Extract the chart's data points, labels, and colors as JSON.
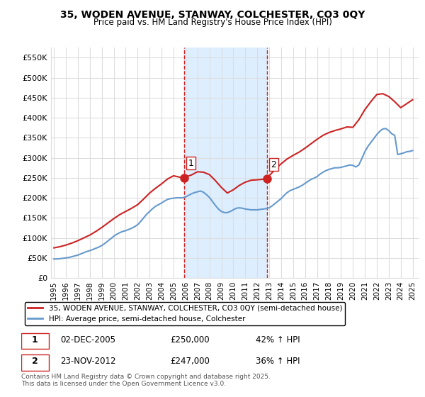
{
  "title": "35, WODEN AVENUE, STANWAY, COLCHESTER, CO3 0QY",
  "subtitle": "Price paid vs. HM Land Registry's House Price Index (HPI)",
  "ylabel": "",
  "ylim": [
    0,
    575000
  ],
  "yticks": [
    0,
    50000,
    100000,
    150000,
    200000,
    250000,
    300000,
    350000,
    400000,
    450000,
    500000,
    550000
  ],
  "ytick_labels": [
    "£0",
    "£50K",
    "£100K",
    "£150K",
    "£200K",
    "£250K",
    "£300K",
    "£350K",
    "£400K",
    "£450K",
    "£500K",
    "£550K"
  ],
  "sale1_date": "2005-12-02",
  "sale1_price": 250000,
  "sale1_label": "1",
  "sale2_date": "2012-11-23",
  "sale2_price": 247000,
  "sale2_label": "2",
  "sale1_text": "02-DEC-2005    £250,000    42% ↑ HPI",
  "sale2_text": "23-NOV-2012    £247,000    36% ↑ HPI",
  "hpi_line_color": "#6699cc",
  "price_line_color": "#cc2222",
  "highlight_color": "#ddeeff",
  "highlight_edge_color": "#cc2222",
  "grid_color": "#dddddd",
  "background_color": "#ffffff",
  "legend_label_property": "35, WODEN AVENUE, STANWAY, COLCHESTER, CO3 0QY (semi-detached house)",
  "legend_label_hpi": "HPI: Average price, semi-detached house, Colchester",
  "footer": "Contains HM Land Registry data © Crown copyright and database right 2025.\nThis data is licensed under the Open Government Licence v3.0.",
  "hpi_data_x": [
    1995.0,
    1995.25,
    1995.5,
    1995.75,
    1996.0,
    1996.25,
    1996.5,
    1996.75,
    1997.0,
    1997.25,
    1997.5,
    1997.75,
    1998.0,
    1998.25,
    1998.5,
    1998.75,
    1999.0,
    1999.25,
    1999.5,
    1999.75,
    2000.0,
    2000.25,
    2000.5,
    2000.75,
    2001.0,
    2001.25,
    2001.5,
    2001.75,
    2002.0,
    2002.25,
    2002.5,
    2002.75,
    2003.0,
    2003.25,
    2003.5,
    2003.75,
    2004.0,
    2004.25,
    2004.5,
    2004.75,
    2005.0,
    2005.25,
    2005.5,
    2005.75,
    2006.0,
    2006.25,
    2006.5,
    2006.75,
    2007.0,
    2007.25,
    2007.5,
    2007.75,
    2008.0,
    2008.25,
    2008.5,
    2008.75,
    2009.0,
    2009.25,
    2009.5,
    2009.75,
    2010.0,
    2010.25,
    2010.5,
    2010.75,
    2011.0,
    2011.25,
    2011.5,
    2011.75,
    2012.0,
    2012.25,
    2012.5,
    2012.75,
    2013.0,
    2013.25,
    2013.5,
    2013.75,
    2014.0,
    2014.25,
    2014.5,
    2014.75,
    2015.0,
    2015.25,
    2015.5,
    2015.75,
    2016.0,
    2016.25,
    2016.5,
    2016.75,
    2017.0,
    2017.25,
    2017.5,
    2017.75,
    2018.0,
    2018.25,
    2018.5,
    2018.75,
    2019.0,
    2019.25,
    2019.5,
    2019.75,
    2020.0,
    2020.25,
    2020.5,
    2020.75,
    2021.0,
    2021.25,
    2021.5,
    2021.75,
    2022.0,
    2022.25,
    2022.5,
    2022.75,
    2023.0,
    2023.25,
    2023.5,
    2023.75,
    2024.0,
    2024.25,
    2024.5,
    2024.75,
    2025.0
  ],
  "hpi_data_y": [
    47000,
    47500,
    48000,
    49000,
    50000,
    51000,
    53000,
    55000,
    57000,
    60000,
    63000,
    66000,
    68000,
    71000,
    74000,
    77000,
    81000,
    86000,
    92000,
    98000,
    104000,
    109000,
    113000,
    116000,
    118000,
    121000,
    124000,
    128000,
    133000,
    141000,
    150000,
    159000,
    166000,
    173000,
    179000,
    183000,
    187000,
    192000,
    196000,
    198000,
    199000,
    200000,
    200000,
    200000,
    202000,
    206000,
    210000,
    213000,
    215000,
    217000,
    214000,
    208000,
    201000,
    191000,
    181000,
    172000,
    166000,
    163000,
    163000,
    166000,
    170000,
    174000,
    175000,
    174000,
    172000,
    171000,
    170000,
    170000,
    170000,
    171000,
    172000,
    173000,
    175000,
    180000,
    186000,
    192000,
    198000,
    206000,
    213000,
    218000,
    221000,
    224000,
    227000,
    231000,
    236000,
    241000,
    246000,
    249000,
    253000,
    259000,
    264000,
    268000,
    271000,
    273000,
    275000,
    275000,
    276000,
    278000,
    280000,
    282000,
    281000,
    277000,
    282000,
    298000,
    315000,
    328000,
    338000,
    348000,
    358000,
    366000,
    372000,
    373000,
    368000,
    360000,
    356000,
    308000,
    310000,
    312000,
    315000,
    316000,
    318000
  ],
  "price_data_x": [
    1995.0,
    1995.5,
    1996.0,
    1996.5,
    1997.0,
    1997.5,
    1998.0,
    1998.5,
    1999.0,
    1999.5,
    2000.0,
    2000.5,
    2001.0,
    2001.5,
    2002.0,
    2002.5,
    2003.0,
    2003.5,
    2004.0,
    2004.5,
    2005.0,
    2005.75,
    2006.5,
    2007.0,
    2007.5,
    2008.0,
    2008.5,
    2009.0,
    2009.5,
    2010.0,
    2010.5,
    2011.0,
    2011.5,
    2012.0,
    2012.75,
    2013.5,
    2014.0,
    2014.5,
    2015.0,
    2015.5,
    2016.0,
    2016.5,
    2017.0,
    2017.5,
    2018.0,
    2018.5,
    2019.0,
    2019.5,
    2020.0,
    2020.5,
    2021.0,
    2021.5,
    2022.0,
    2022.5,
    2023.0,
    2023.5,
    2024.0,
    2024.5,
    2025.0
  ],
  "price_data_y": [
    75000,
    78000,
    82000,
    87000,
    93000,
    100000,
    107000,
    116000,
    126000,
    137000,
    148000,
    158000,
    166000,
    174000,
    183000,
    197000,
    212000,
    224000,
    235000,
    247000,
    255000,
    250000,
    257000,
    265000,
    264000,
    258000,
    243000,
    226000,
    212000,
    220000,
    231000,
    239000,
    244000,
    245000,
    247000,
    271000,
    285000,
    297000,
    306000,
    314000,
    324000,
    335000,
    346000,
    356000,
    363000,
    368000,
    372000,
    377000,
    376000,
    395000,
    420000,
    440000,
    458000,
    460000,
    453000,
    440000,
    425000,
    435000,
    445000
  ]
}
